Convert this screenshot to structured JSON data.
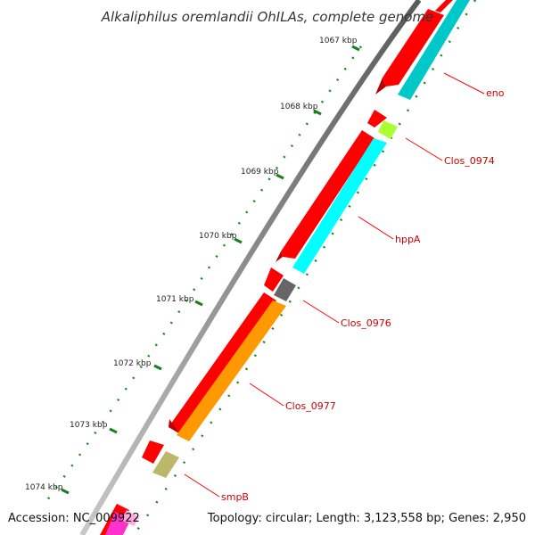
{
  "title": "Alkaliphilus oremlandii OhILAs, complete genome",
  "footer": {
    "accession": "Accession: NC_009922",
    "summary": "Topology: circular; Length: 3,123,558 bp; Genes: 2,950"
  },
  "scale_labels": [
    "1067 kbp",
    "1068 kbp",
    "1069 kbp",
    "1070 kbp",
    "1071 kbp",
    "1072 kbp",
    "1073 kbp",
    "1074 kbp"
  ],
  "genes": [
    {
      "name": "eno",
      "color": "#00c8c8"
    },
    {
      "name": "Clos_0974",
      "color": "#aaff33"
    },
    {
      "name": "hppA",
      "color": "#00ffff"
    },
    {
      "name": "Clos_0976",
      "color": "#666666"
    },
    {
      "name": "Clos_0977",
      "color": "#ff9900"
    },
    {
      "name": "smpB",
      "color": "#bdb76b"
    }
  ],
  "colors": {
    "backbone": "#888888",
    "cds": "#ff0000",
    "label": "#cc0000",
    "scale_tick": "#1a7f1a"
  }
}
